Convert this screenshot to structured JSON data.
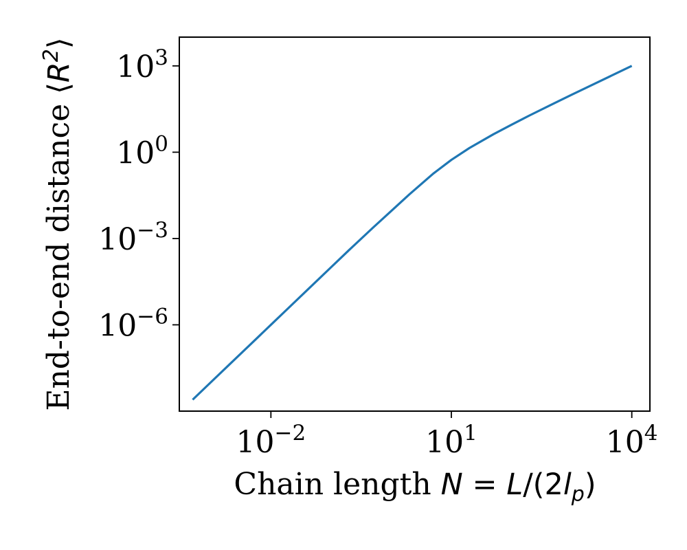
{
  "chart_data": {
    "type": "line",
    "title": "",
    "xscale": "log",
    "yscale": "log",
    "xlim": [
      0.0003,
      20000
    ],
    "ylim": [
      1e-09,
      10000.0
    ],
    "grid": false,
    "legend": "none",
    "line_color": "#1f77b4",
    "xlabel": {
      "text": "Chain length ",
      "math_lhs": "N",
      "math_eq": " = ",
      "math_L": "L",
      "math_slash": "/(2",
      "math_l": "l",
      "math_sub": "p",
      "math_close": ")"
    },
    "ylabel": {
      "text": "End-to-end distance ",
      "math_open": "⟨",
      "math_R": "R",
      "math_sup": "2",
      "math_close": "⟩"
    },
    "x_ticks": [
      {
        "value": 0.01,
        "base": "10",
        "exp": "−2"
      },
      {
        "value": 10,
        "base": "10",
        "exp": "1"
      },
      {
        "value": 10000,
        "base": "10",
        "exp": "4"
      }
    ],
    "y_ticks": [
      {
        "value": 1e-06,
        "base": "10",
        "exp": "−6"
      },
      {
        "value": 0.001,
        "base": "10",
        "exp": "−3"
      },
      {
        "value": 1,
        "base": "10",
        "exp": "0"
      },
      {
        "value": 1000,
        "base": "10",
        "exp": "3"
      }
    ],
    "series": [
      {
        "x": [
          0.0005,
          0.001,
          0.002,
          0.005,
          0.01,
          0.02,
          0.05,
          0.1,
          0.2,
          0.5,
          1,
          2,
          5,
          10,
          20,
          50,
          100,
          200,
          500,
          1000,
          2000,
          5000,
          10000
        ],
        "y": [
          2.5e-09,
          1e-08,
          4e-08,
          2.5e-07,
          1e-06,
          4e-06,
          2.5e-05,
          0.0001,
          0.0004,
          0.0024,
          0.009,
          0.034,
          0.18,
          0.54,
          1.4,
          4.2,
          9.0,
          19,
          49,
          99,
          199,
          499,
          1000
        ]
      }
    ]
  }
}
